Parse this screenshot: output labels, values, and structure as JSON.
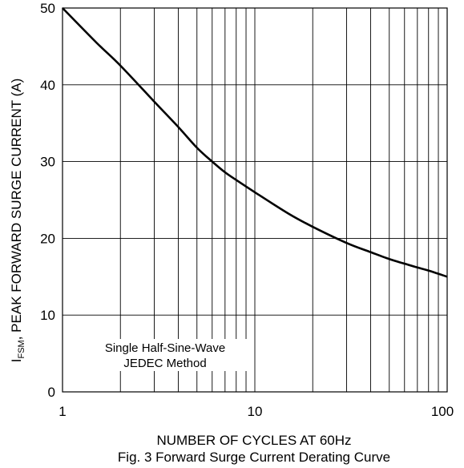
{
  "chart_data": {
    "type": "line",
    "title": "Fig. 3 Forward Surge Current Derating Curve",
    "xlabel": "NUMBER OF CYCLES AT 60Hz",
    "ylabel": {
      "symbol": "I",
      "subscript": "FSM",
      "text": ", PEAK FORWARD SURGE CURRENT (A)"
    },
    "x_scale": "log",
    "xlim": [
      1,
      100
    ],
    "ylim": [
      0,
      50
    ],
    "x_ticks": [
      1,
      10,
      100
    ],
    "x_tick_labels": [
      "1",
      "10",
      "100"
    ],
    "y_ticks": [
      0,
      10,
      20,
      30,
      40,
      50
    ],
    "y_tick_labels": [
      "0",
      "10",
      "20",
      "30",
      "40",
      "50"
    ],
    "grid": true,
    "annotation": [
      "Single Half-Sine-Wave",
      "JEDEC Method"
    ],
    "series": [
      {
        "x": [
          1,
          1.5,
          2,
          3,
          4,
          5,
          6,
          7,
          8,
          10,
          15,
          20,
          30,
          40,
          50,
          60,
          70,
          80,
          100
        ],
        "y": [
          50,
          45.5,
          42.5,
          37.8,
          34.5,
          31.8,
          30,
          28.6,
          27.6,
          26,
          23.2,
          21.5,
          19.4,
          18.2,
          17.3,
          16.7,
          16.2,
          15.8,
          15
        ]
      }
    ],
    "colors": {
      "line": "#000000",
      "grid": "#000000",
      "background": "#ffffff"
    }
  }
}
